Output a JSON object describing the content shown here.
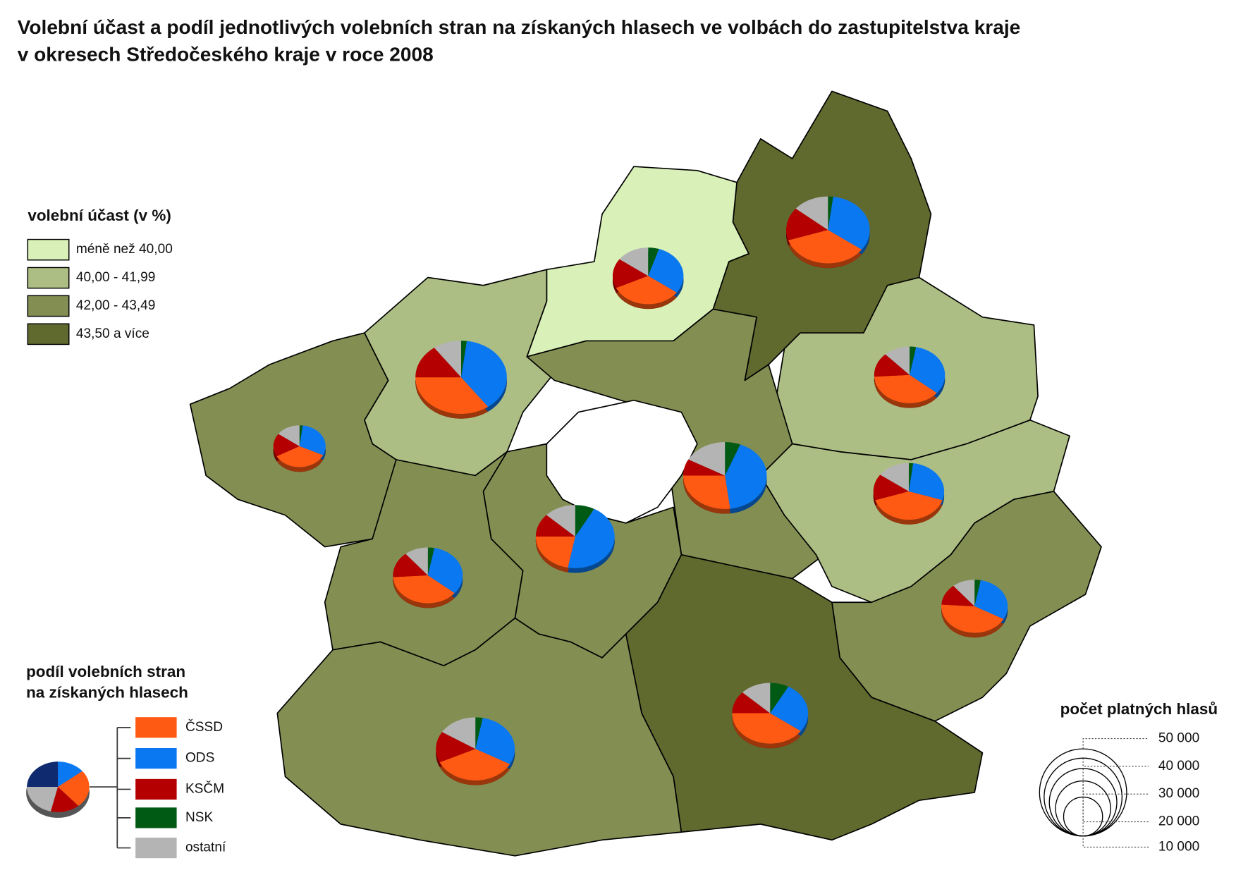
{
  "title_lines": [
    "Volební účast a podíl jednotlivých volebních stran na získaných hlasech ve volbách do zastupitelstva kraje",
    "v okresech Středočeského kraje v roce 2008"
  ],
  "turnout_legend": {
    "title": "volební účast (v %)",
    "classes": [
      {
        "label": "méně než 40,00",
        "color": "#d9f0b8"
      },
      {
        "label": "40,00 - 41,99",
        "color": "#adbe84"
      },
      {
        "label": "42,00 - 43,49",
        "color": "#838f52"
      },
      {
        "label": "43,50 a více",
        "color": "#606a2f"
      }
    ]
  },
  "party_legend": {
    "title_lines": [
      "podíl volebních stran",
      "na získaných hlasech"
    ],
    "parties": [
      {
        "name": "ČSSD",
        "color": "#ff5a14"
      },
      {
        "name": "ODS",
        "color": "#0a78f0"
      },
      {
        "name": "KSČM",
        "color": "#b40000"
      },
      {
        "name": "NSK",
        "color": "#005a14"
      },
      {
        "name": "ostatní",
        "color": "#b4b4b4"
      }
    ]
  },
  "size_legend": {
    "title": "počet platných hlasů",
    "values": [
      {
        "value": 50000,
        "label": "50 000"
      },
      {
        "value": 40000,
        "label": "40 000"
      },
      {
        "value": 30000,
        "label": "30 000"
      },
      {
        "value": 20000,
        "label": "20 000"
      },
      {
        "value": 10000,
        "label": "10 000"
      }
    ]
  },
  "districts": [
    {
      "class": 3,
      "votes": 46000,
      "shares": [
        35,
        33,
        16,
        2,
        14
      ]
    },
    {
      "class": 0,
      "votes": 33000,
      "shares": [
        33,
        30,
        17,
        5,
        15
      ]
    },
    {
      "class": 1,
      "votes": 55000,
      "shares": [
        35,
        38,
        15,
        2,
        10
      ]
    },
    {
      "class": 2,
      "votes": 18000,
      "shares": [
        35,
        30,
        18,
        2,
        15
      ]
    },
    {
      "class": 1,
      "votes": 33000,
      "shares": [
        38,
        33,
        14,
        3,
        12
      ]
    },
    {
      "class": 2,
      "votes": 46000,
      "shares": [
        27,
        42,
        8,
        6,
        17
      ]
    },
    {
      "class": 1,
      "votes": 33000,
      "shares": [
        40,
        28,
        15,
        2,
        15
      ]
    },
    {
      "class": 2,
      "votes": 41000,
      "shares": [
        22,
        45,
        12,
        8,
        13
      ]
    },
    {
      "class": 2,
      "votes": 32000,
      "shares": [
        38,
        33,
        15,
        3,
        11
      ]
    },
    {
      "class": 2,
      "votes": 29000,
      "shares": [
        43,
        30,
        13,
        3,
        11
      ]
    },
    {
      "class": 2,
      "votes": 41000,
      "shares": [
        35,
        30,
        16,
        3,
        16
      ]
    },
    {
      "class": 3,
      "votes": 38000,
      "shares": [
        40,
        27,
        12,
        8,
        13
      ]
    }
  ]
}
